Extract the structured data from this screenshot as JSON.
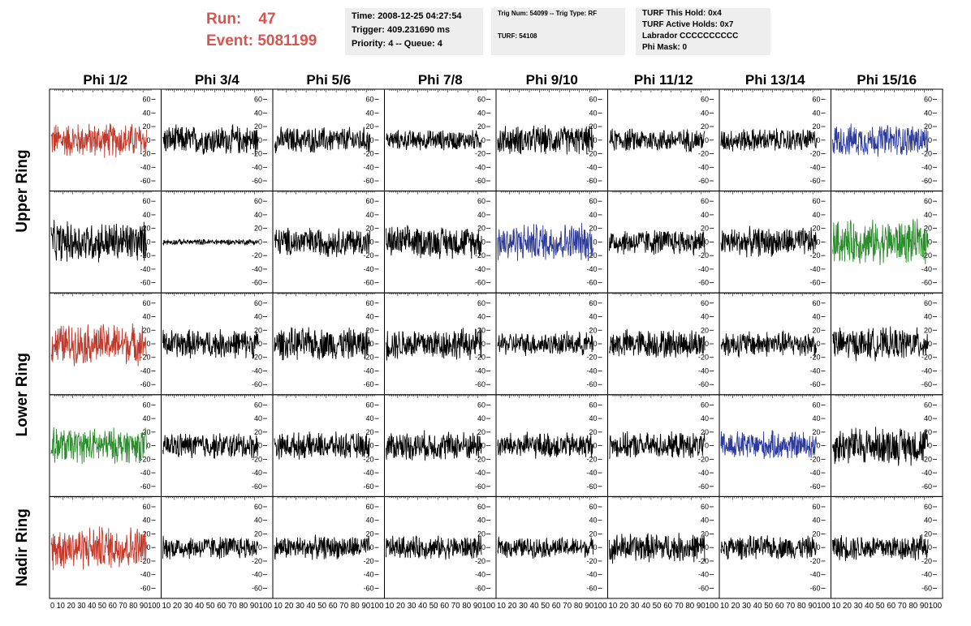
{
  "header": {
    "run_label": "Run:",
    "run_value": "47",
    "event_label": "Event:",
    "event_value": "5081199",
    "time_line": "Time: 2008-12-25 04:27:54",
    "trigger_line": "Trigger: 409.231690 ms",
    "priority_line": "Priority: 4 -- Queue: 4",
    "trig_line": "Trig Num: 54099 -- Trig Type: RF",
    "turf_line": "TURF: 54108",
    "turf_hold_line": "TURF This Hold: 0x4",
    "turf_active_line": "TURF Active Holds: 0x7",
    "labrador_line": "Labrador CCCCCCCCCC",
    "phi_mask_line": "Phi Mask: 0"
  },
  "colors": {
    "header_red": "#d9534f",
    "trace_black": "#000000",
    "trace_red": "#c0392b",
    "trace_blue": "#2c3b9b",
    "trace_green": "#2a8c2a"
  },
  "chart_data": {
    "type": "line",
    "grid": false,
    "columns": [
      "Phi 1/2",
      "Phi 3/4",
      "Phi 5/6",
      "Phi 7/8",
      "Phi 9/10",
      "Phi 11/12",
      "Phi 13/14",
      "Phi 15/16"
    ],
    "ring_labels": [
      "Upper Ring",
      "Lower Ring",
      "Nadir Ring"
    ],
    "xlim": [
      0,
      100
    ],
    "ylim": [
      -75,
      75
    ],
    "y_ticks": [
      -60,
      -40,
      -20,
      0,
      20,
      40,
      60
    ],
    "x_ticks": [
      0,
      10,
      20,
      30,
      40,
      50,
      60,
      70,
      80,
      90,
      100
    ],
    "x_tick_label_rows": [
      "0 10 20 30 40 50 60 70 80 90100",
      "10 20 30 40 50 60 70 80 90100",
      "10 20 30 40 50 60 70 80 90100",
      "10 20 30 40 50 60 70 80 90100",
      "10 20 30 40 50 60 70 80 90100",
      "10 20 30 40 50 60 70 80 90100",
      "10 20 30 40 50 60 70 80 90100",
      "10 20 30 40 50 60 70 80 90100"
    ],
    "panel_rows": 5,
    "panel_cols": 8,
    "trace_samples": 260,
    "trace_amplitudes": [
      [
        24,
        20,
        18,
        14,
        20,
        16,
        16,
        22
      ],
      [
        28,
        4,
        20,
        22,
        26,
        18,
        20,
        30
      ],
      [
        28,
        20,
        22,
        22,
        16,
        20,
        18,
        22
      ],
      [
        24,
        18,
        18,
        20,
        18,
        18,
        20,
        26
      ],
      [
        30,
        16,
        16,
        16,
        14,
        20,
        16,
        18
      ]
    ],
    "trace_colors": [
      [
        "red",
        "black",
        "black",
        "black",
        "black",
        "black",
        "black",
        "blue"
      ],
      [
        "black",
        "black",
        "black",
        "black",
        "blue",
        "black",
        "black",
        "green"
      ],
      [
        "red",
        "black",
        "black",
        "black",
        "black",
        "black",
        "black",
        "black"
      ],
      [
        "green",
        "black",
        "black",
        "black",
        "black",
        "black",
        "blue",
        "black"
      ],
      [
        "red",
        "black",
        "black",
        "black",
        "black",
        "black",
        "black",
        "black"
      ]
    ]
  }
}
